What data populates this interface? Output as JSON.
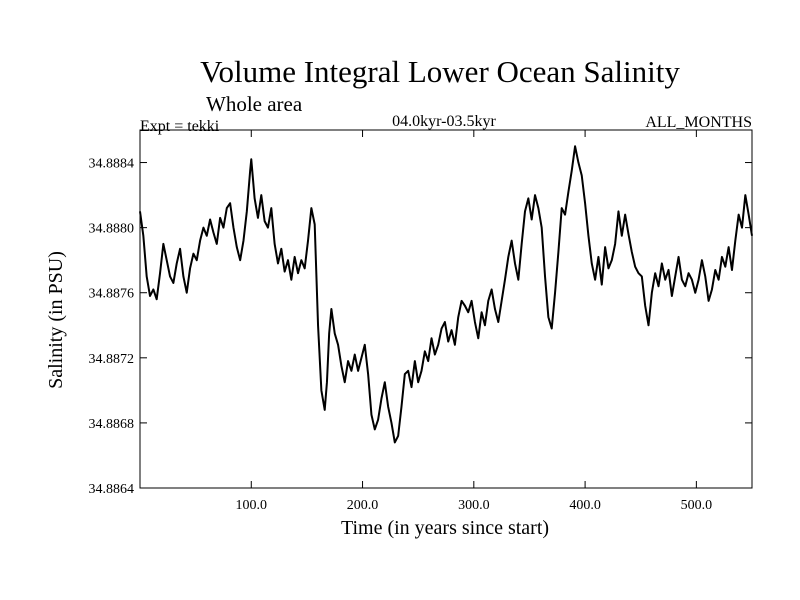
{
  "chart_data": {
    "type": "line",
    "title": "Volume Integral Lower Ocean Salinity",
    "subtitle": "Whole area",
    "experiment_label": "Expt = tekki",
    "period_label": "04.0kyr-03.5kyr",
    "months_label": "ALL_MONTHS",
    "xlabel": "Time (in years since start)",
    "ylabel": "Salinity (in PSU)",
    "xlim": [
      0,
      550
    ],
    "ylim": [
      34.8864,
      34.8886
    ],
    "x_ticks": [
      100,
      200,
      300,
      400,
      500
    ],
    "x_tick_labels": [
      "100.0",
      "200.0",
      "300.0",
      "400.0",
      "500.0"
    ],
    "y_ticks": [
      34.8864,
      34.8868,
      34.8872,
      34.8876,
      34.888,
      34.8884
    ],
    "y_tick_labels": [
      "34.8864",
      "34.8868",
      "34.8872",
      "34.8876",
      "34.8880",
      "34.8884"
    ],
    "grid": false,
    "series": [
      {
        "name": "Salinity",
        "color": "#000000",
        "points": [
          [
            0,
            34.8881
          ],
          [
            3,
            34.88795
          ],
          [
            6,
            34.8877
          ],
          [
            9,
            34.88758
          ],
          [
            12,
            34.88762
          ],
          [
            15,
            34.88756
          ],
          [
            18,
            34.88772
          ],
          [
            21,
            34.8879
          ],
          [
            24,
            34.8878
          ],
          [
            27,
            34.8877
          ],
          [
            30,
            34.88766
          ],
          [
            33,
            34.88778
          ],
          [
            36,
            34.88787
          ],
          [
            39,
            34.8877
          ],
          [
            42,
            34.8876
          ],
          [
            45,
            34.88775
          ],
          [
            48,
            34.88784
          ],
          [
            51,
            34.8878
          ],
          [
            54,
            34.88792
          ],
          [
            57,
            34.888
          ],
          [
            60,
            34.88795
          ],
          [
            63,
            34.88805
          ],
          [
            66,
            34.88797
          ],
          [
            69,
            34.8879
          ],
          [
            72,
            34.88806
          ],
          [
            75,
            34.888
          ],
          [
            78,
            34.88812
          ],
          [
            81,
            34.88815
          ],
          [
            84,
            34.888
          ],
          [
            87,
            34.88788
          ],
          [
            90,
            34.8878
          ],
          [
            93,
            34.88792
          ],
          [
            96,
            34.8881
          ],
          [
            99,
            34.88835
          ],
          [
            100,
            34.88842
          ],
          [
            103,
            34.88818
          ],
          [
            106,
            34.88806
          ],
          [
            109,
            34.8882
          ],
          [
            112,
            34.88804
          ],
          [
            115,
            34.888
          ],
          [
            118,
            34.88812
          ],
          [
            121,
            34.8879
          ],
          [
            124,
            34.88778
          ],
          [
            127,
            34.88787
          ],
          [
            130,
            34.88773
          ],
          [
            133,
            34.8878
          ],
          [
            136,
            34.88768
          ],
          [
            139,
            34.88782
          ],
          [
            142,
            34.88772
          ],
          [
            145,
            34.8878
          ],
          [
            148,
            34.88775
          ],
          [
            151,
            34.88792
          ],
          [
            154,
            34.88812
          ],
          [
            157,
            34.88802
          ],
          [
            160,
            34.8874
          ],
          [
            163,
            34.887
          ],
          [
            166,
            34.88688
          ],
          [
            168,
            34.88705
          ],
          [
            170,
            34.88735
          ],
          [
            172,
            34.8875
          ],
          [
            175,
            34.88735
          ],
          [
            178,
            34.88728
          ],
          [
            181,
            34.88715
          ],
          [
            184,
            34.88705
          ],
          [
            187,
            34.88718
          ],
          [
            190,
            34.88712
          ],
          [
            193,
            34.88722
          ],
          [
            196,
            34.88712
          ],
          [
            199,
            34.8872
          ],
          [
            202,
            34.88728
          ],
          [
            205,
            34.8871
          ],
          [
            208,
            34.88685
          ],
          [
            211,
            34.88676
          ],
          [
            214,
            34.88682
          ],
          [
            217,
            34.88695
          ],
          [
            220,
            34.88705
          ],
          [
            223,
            34.8869
          ],
          [
            226,
            34.8868
          ],
          [
            229,
            34.88668
          ],
          [
            232,
            34.88672
          ],
          [
            235,
            34.8869
          ],
          [
            238,
            34.8871
          ],
          [
            241,
            34.88712
          ],
          [
            244,
            34.88702
          ],
          [
            247,
            34.88718
          ],
          [
            250,
            34.88705
          ],
          [
            253,
            34.88712
          ],
          [
            256,
            34.88724
          ],
          [
            259,
            34.88718
          ],
          [
            262,
            34.88732
          ],
          [
            265,
            34.88722
          ],
          [
            268,
            34.88728
          ],
          [
            271,
            34.88738
          ],
          [
            274,
            34.88742
          ],
          [
            277,
            34.8873
          ],
          [
            280,
            34.88737
          ],
          [
            283,
            34.88728
          ],
          [
            286,
            34.88745
          ],
          [
            289,
            34.88755
          ],
          [
            292,
            34.88752
          ],
          [
            295,
            34.88748
          ],
          [
            298,
            34.88755
          ],
          [
            301,
            34.88742
          ],
          [
            304,
            34.88732
          ],
          [
            307,
            34.88748
          ],
          [
            310,
            34.8874
          ],
          [
            313,
            34.88755
          ],
          [
            316,
            34.88762
          ],
          [
            319,
            34.8875
          ],
          [
            322,
            34.88742
          ],
          [
            325,
            34.88755
          ],
          [
            328,
            34.88768
          ],
          [
            331,
            34.88782
          ],
          [
            334,
            34.88792
          ],
          [
            337,
            34.88778
          ],
          [
            340,
            34.88768
          ],
          [
            343,
            34.8879
          ],
          [
            346,
            34.8881
          ],
          [
            349,
            34.88818
          ],
          [
            352,
            34.88805
          ],
          [
            355,
            34.8882
          ],
          [
            358,
            34.88812
          ],
          [
            361,
            34.888
          ],
          [
            364,
            34.8877
          ],
          [
            367,
            34.88745
          ],
          [
            370,
            34.88738
          ],
          [
            373,
            34.8876
          ],
          [
            376,
            34.88785
          ],
          [
            379,
            34.88812
          ],
          [
            382,
            34.88808
          ],
          [
            385,
            34.88822
          ],
          [
            388,
            34.88835
          ],
          [
            391,
            34.8885
          ],
          [
            394,
            34.8884
          ],
          [
            397,
            34.88832
          ],
          [
            400,
            34.88815
          ],
          [
            403,
            34.88795
          ],
          [
            406,
            34.88778
          ],
          [
            409,
            34.88768
          ],
          [
            412,
            34.88782
          ],
          [
            415,
            34.88765
          ],
          [
            418,
            34.88788
          ],
          [
            421,
            34.88775
          ],
          [
            424,
            34.8878
          ],
          [
            427,
            34.8879
          ],
          [
            430,
            34.8881
          ],
          [
            433,
            34.88795
          ],
          [
            436,
            34.88808
          ],
          [
            439,
            34.88796
          ],
          [
            442,
            34.88785
          ],
          [
            445,
            34.88776
          ],
          [
            448,
            34.88772
          ],
          [
            451,
            34.8877
          ],
          [
            454,
            34.88752
          ],
          [
            457,
            34.8874
          ],
          [
            460,
            34.8876
          ],
          [
            463,
            34.88772
          ],
          [
            466,
            34.88764
          ],
          [
            469,
            34.88778
          ],
          [
            472,
            34.88768
          ],
          [
            475,
            34.88774
          ],
          [
            478,
            34.88758
          ],
          [
            481,
            34.8877
          ],
          [
            484,
            34.88782
          ],
          [
            487,
            34.88768
          ],
          [
            490,
            34.88764
          ],
          [
            493,
            34.88772
          ],
          [
            496,
            34.88768
          ],
          [
            499,
            34.8876
          ],
          [
            502,
            34.88768
          ],
          [
            505,
            34.8878
          ],
          [
            508,
            34.8877
          ],
          [
            511,
            34.88755
          ],
          [
            514,
            34.88762
          ],
          [
            517,
            34.88774
          ],
          [
            520,
            34.88768
          ],
          [
            523,
            34.88782
          ],
          [
            526,
            34.88776
          ],
          [
            529,
            34.88788
          ],
          [
            532,
            34.88774
          ],
          [
            535,
            34.88792
          ],
          [
            538,
            34.88808
          ],
          [
            541,
            34.888
          ],
          [
            544,
            34.8882
          ],
          [
            547,
            34.88808
          ],
          [
            550,
            34.88795
          ]
        ]
      }
    ]
  }
}
